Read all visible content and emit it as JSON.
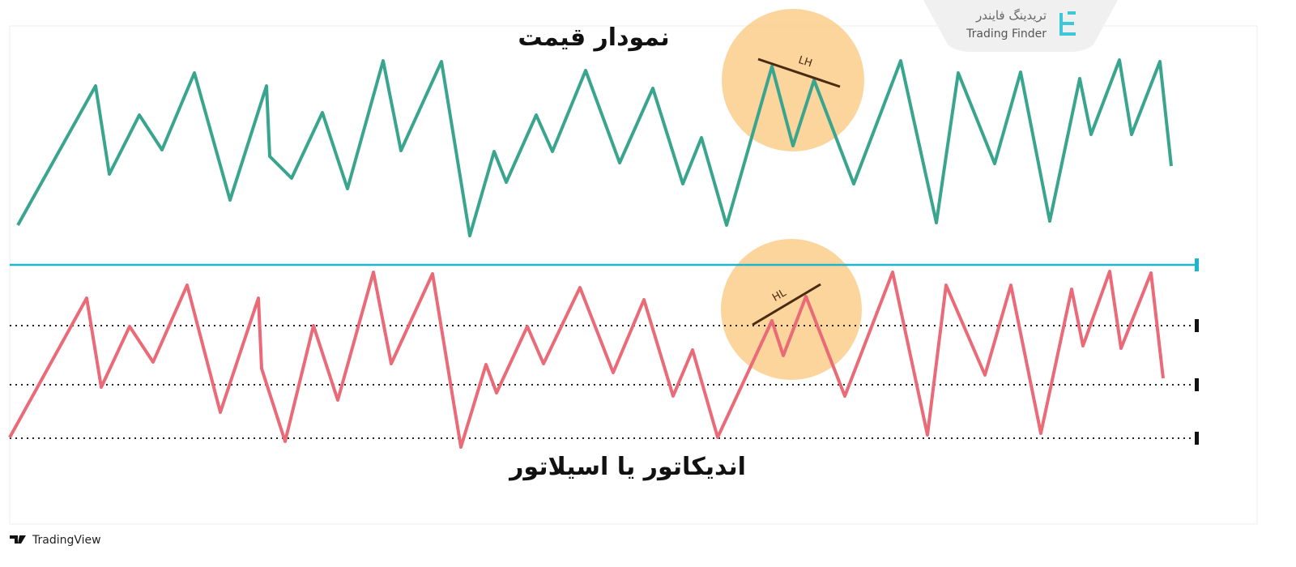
{
  "labels": {
    "price": "نمودار قیمت",
    "indicator": "اندیکاتور یا اسیلاتور",
    "lh": "LH",
    "hl": "HL"
  },
  "brand": {
    "fa": "تریدینگ فایندر",
    "en": "Trading Finder"
  },
  "footer": "TradingView"
}
